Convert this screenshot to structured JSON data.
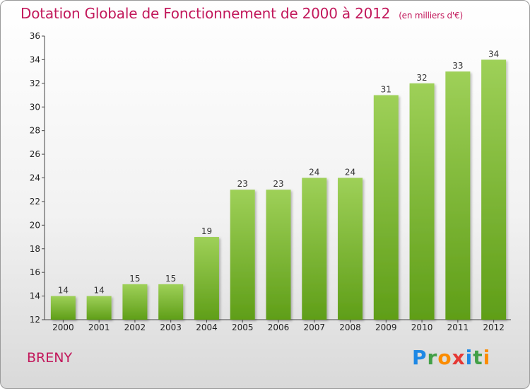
{
  "title": "Dotation Globale de Fonctionnement de 2000 à 2012",
  "subtitle": "(en milliers d'€)",
  "commune": "BRENY",
  "logo": {
    "text": "Proxiti",
    "letters": [
      "P",
      "r",
      "o",
      "x",
      "i",
      "t",
      "i"
    ],
    "colors": [
      "#1e88e5",
      "#43a047",
      "#fb8c00",
      "#e53935",
      "#1e88e5",
      "#43a047",
      "#fb8c00"
    ]
  },
  "colors": {
    "title": "#c2185b",
    "bar_top": "#9ed058",
    "bar_bottom": "#5f9e18"
  },
  "chart_data": {
    "type": "bar",
    "title": "Dotation Globale de Fonctionnement de 2000 à 2012",
    "subtitle": "(en milliers d'€)",
    "categories": [
      "2000",
      "2001",
      "2002",
      "2003",
      "2004",
      "2005",
      "2006",
      "2007",
      "2008",
      "2009",
      "2010",
      "2011",
      "2012"
    ],
    "values": [
      14,
      14,
      15,
      15,
      19,
      23,
      23,
      24,
      24,
      31,
      32,
      33,
      34
    ],
    "ylim": [
      12,
      36
    ],
    "yticks": [
      12,
      14,
      16,
      18,
      20,
      22,
      24,
      26,
      28,
      30,
      32,
      34,
      36
    ],
    "grid": false,
    "legend": "none"
  }
}
